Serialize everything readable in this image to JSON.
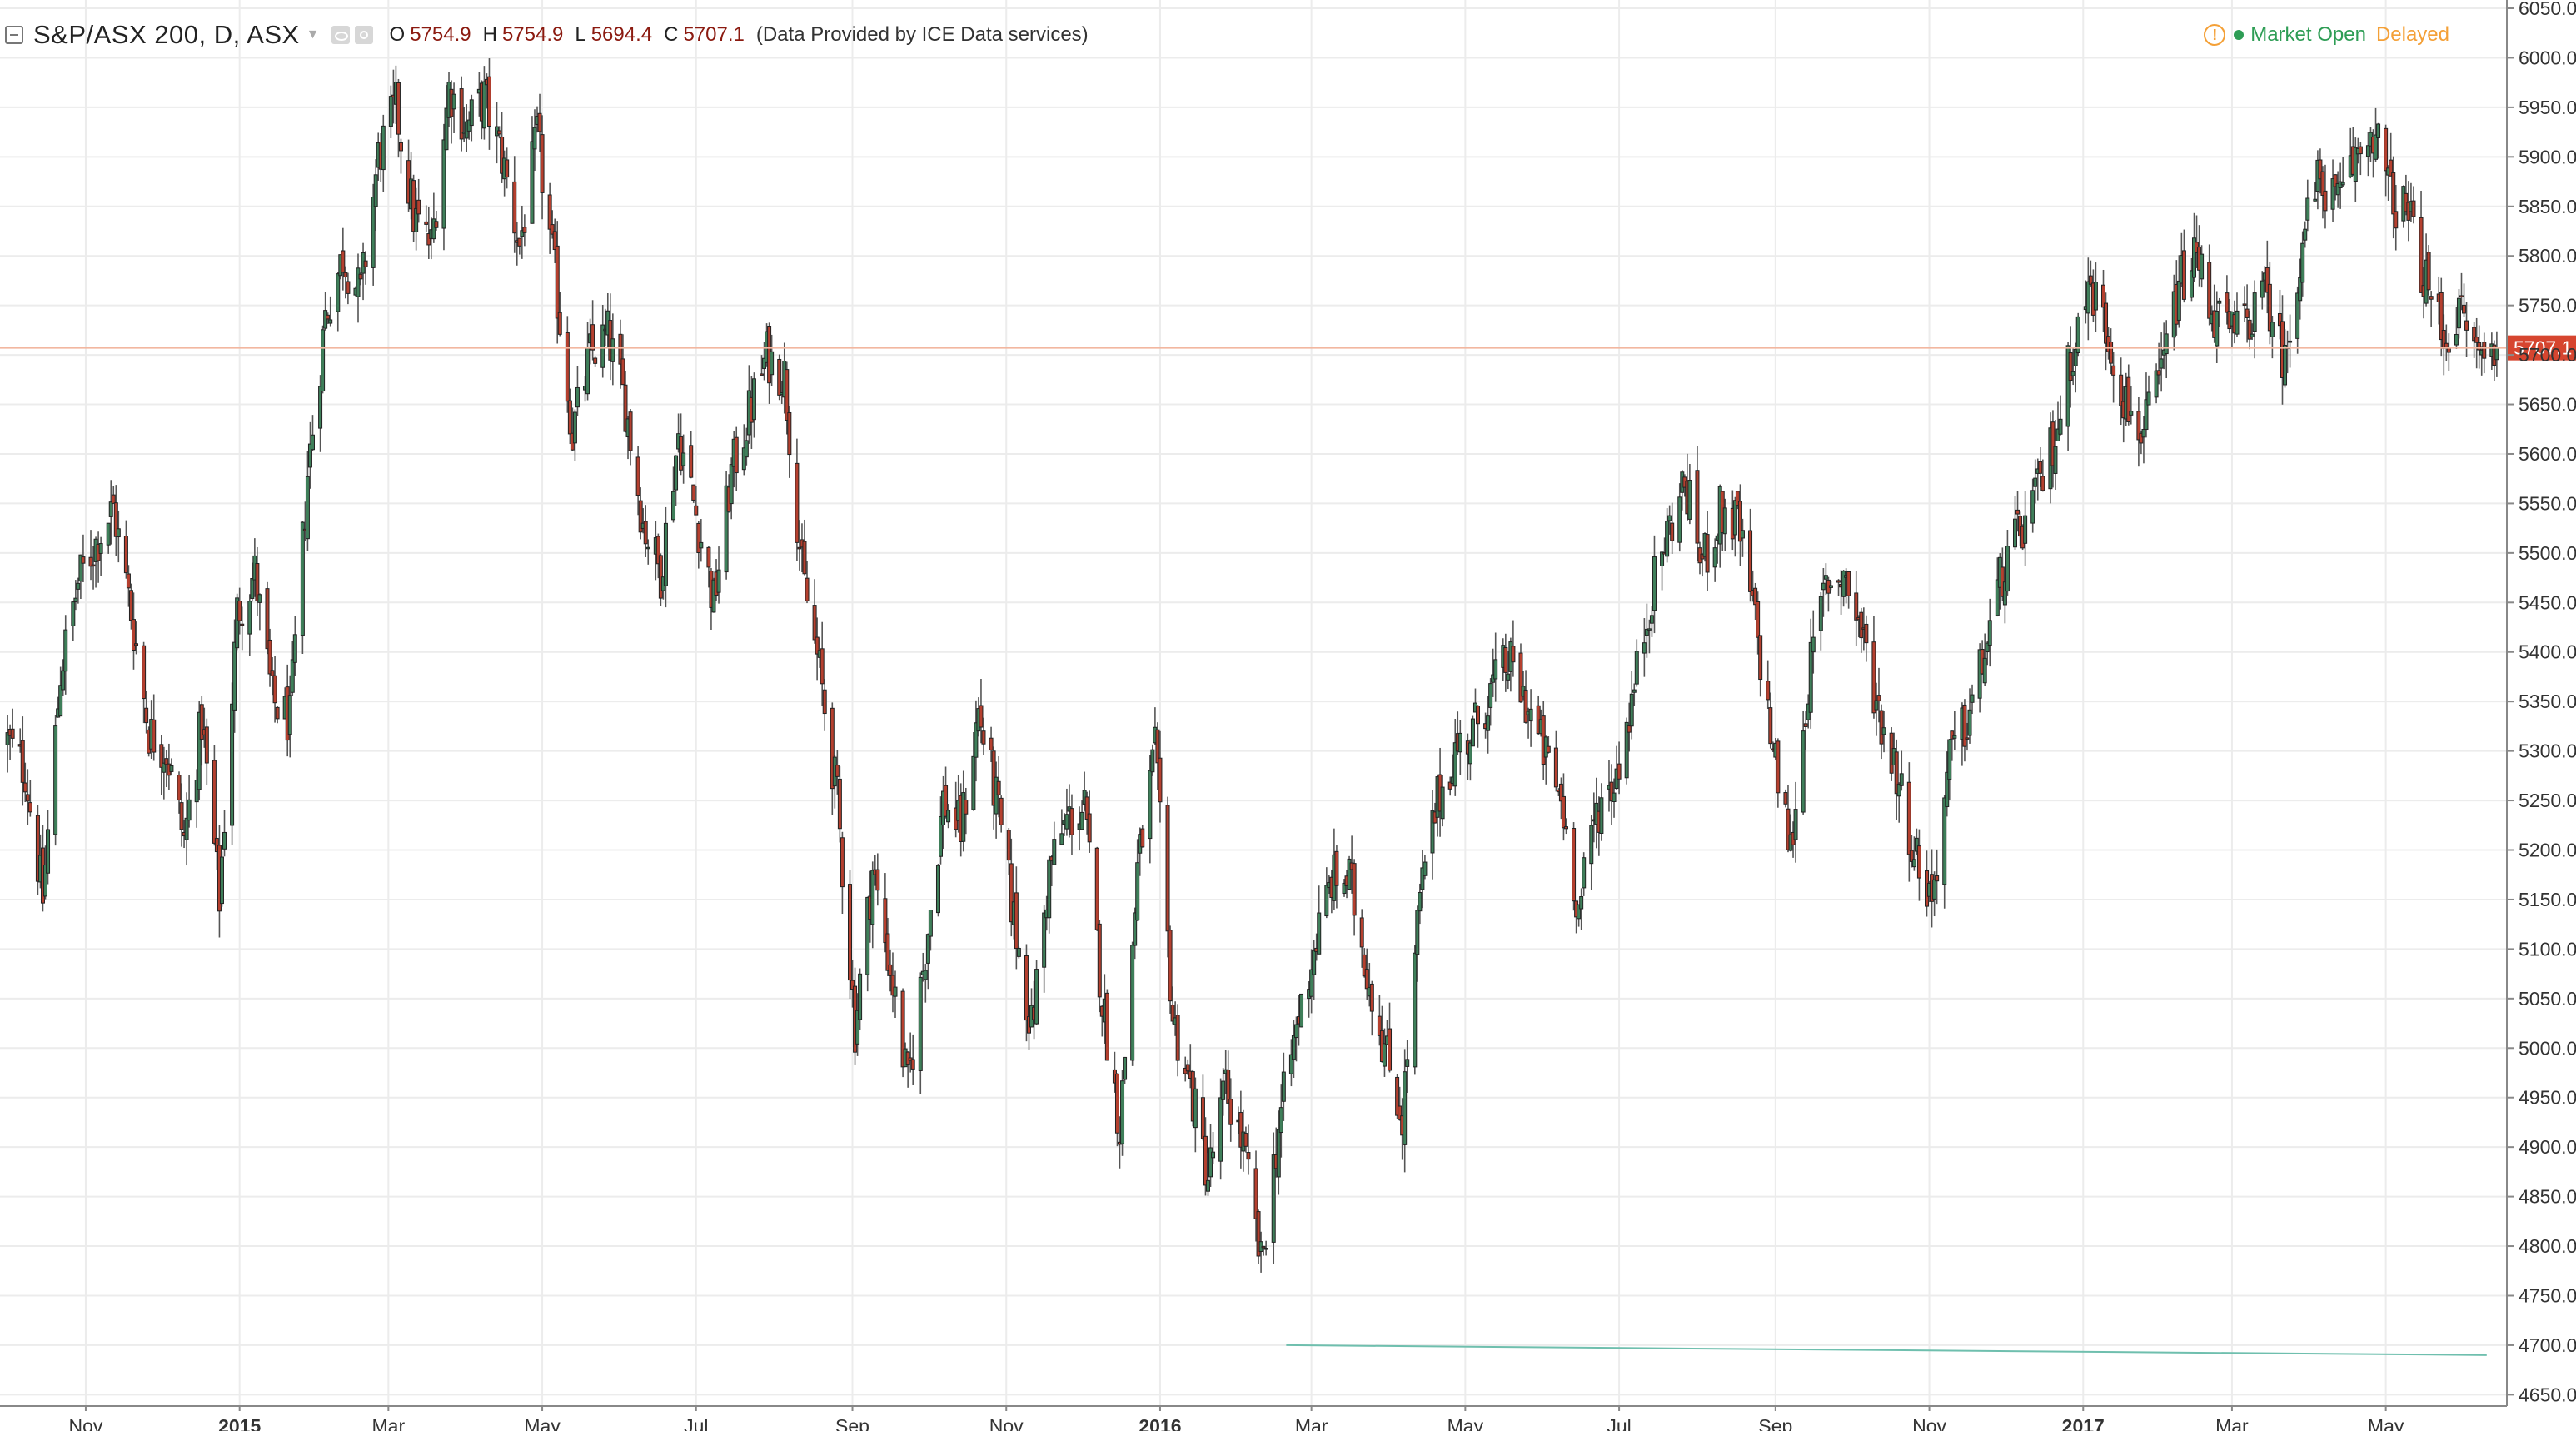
{
  "header": {
    "symbol": "S&P/ASX 200, D, ASX",
    "open_label": "O",
    "open": "5754.9",
    "high_label": "H",
    "high": "5754.9",
    "low_label": "L",
    "low": "5694.4",
    "close_label": "C",
    "close": "5707.1",
    "provider": "(Data Provided by ICE Data services)"
  },
  "status": {
    "warning_icon": "warning-icon",
    "market": "Market Open",
    "delay": "Delayed"
  },
  "colors": {
    "up_body": "#3f7f5a",
    "down_body": "#b5402f",
    "outline": "#222222",
    "wick": "#555555",
    "grid": "#ececec",
    "price_line": "#f2b7a0",
    "price_label": "#d6452f",
    "trendline": "#6fbfae",
    "warning": "#f4a037",
    "market_open": "#2e9d55"
  },
  "chart_data": {
    "type": "candlestick",
    "title": "S&P/ASX 200, D, ASX",
    "ylim": [
      4650,
      6050
    ],
    "y_ticks": [
      "4650.0",
      "4700.0",
      "4750.0",
      "4800.0",
      "4850.0",
      "4900.0",
      "4950.0",
      "5000.0",
      "5050.0",
      "5100.0",
      "5150.0",
      "5200.0",
      "5250.0",
      "5300.0",
      "5350.0",
      "5400.0",
      "5450.0",
      "5500.0",
      "5550.0",
      "5600.0",
      "5650.0",
      "5700.0",
      "5750.0",
      "5800.0",
      "5850.0",
      "5900.0",
      "5950.0",
      "6000.0",
      "6050.0"
    ],
    "x_ticks": [
      {
        "date": "2014-11-01",
        "label": "Nov",
        "bold": false
      },
      {
        "date": "2015-01-01",
        "label": "2015",
        "bold": true
      },
      {
        "date": "2015-03-01",
        "label": "Mar",
        "bold": false
      },
      {
        "date": "2015-05-01",
        "label": "May",
        "bold": false
      },
      {
        "date": "2015-07-01",
        "label": "Jul",
        "bold": false
      },
      {
        "date": "2015-09-01",
        "label": "Sep",
        "bold": false
      },
      {
        "date": "2015-11-01",
        "label": "Nov",
        "bold": false
      },
      {
        "date": "2016-01-01",
        "label": "2016",
        "bold": true
      },
      {
        "date": "2016-03-01",
        "label": "Mar",
        "bold": false
      },
      {
        "date": "2016-05-01",
        "label": "May",
        "bold": false
      },
      {
        "date": "2016-07-01",
        "label": "Jul",
        "bold": false
      },
      {
        "date": "2016-09-01",
        "label": "Sep",
        "bold": false
      },
      {
        "date": "2016-11-01",
        "label": "Nov",
        "bold": false
      },
      {
        "date": "2017-01-01",
        "label": "2017",
        "bold": true
      },
      {
        "date": "2017-03-01",
        "label": "Mar",
        "bold": false
      },
      {
        "date": "2017-05-01",
        "label": "May",
        "bold": false
      }
    ],
    "x_range": [
      "2014-09-28",
      "2017-06-18"
    ],
    "last_price": 5707.1,
    "last_price_label": "5707.1",
    "close_path": [
      [
        "2014-10-01",
        5310
      ],
      [
        "2014-10-08",
        5280
      ],
      [
        "2014-10-15",
        5150
      ],
      [
        "2014-10-22",
        5380
      ],
      [
        "2014-10-29",
        5470
      ],
      [
        "2014-11-05",
        5510
      ],
      [
        "2014-11-12",
        5545
      ],
      [
        "2014-11-19",
        5440
      ],
      [
        "2014-11-26",
        5320
      ],
      [
        "2014-12-03",
        5300
      ],
      [
        "2014-12-10",
        5210
      ],
      [
        "2014-12-17",
        5330
      ],
      [
        "2014-12-24",
        5150
      ],
      [
        "2014-12-31",
        5440
      ],
      [
        "2015-01-07",
        5480
      ],
      [
        "2015-01-14",
        5350
      ],
      [
        "2015-01-21",
        5330
      ],
      [
        "2015-01-28",
        5580
      ],
      [
        "2015-02-04",
        5740
      ],
      [
        "2015-02-11",
        5800
      ],
      [
        "2015-02-18",
        5760
      ],
      [
        "2015-02-25",
        5900
      ],
      [
        "2015-03-04",
        5950
      ],
      [
        "2015-03-11",
        5840
      ],
      [
        "2015-03-18",
        5810
      ],
      [
        "2015-03-25",
        5970
      ],
      [
        "2015-04-01",
        5930
      ],
      [
        "2015-04-08",
        5960
      ],
      [
        "2015-04-15",
        5900
      ],
      [
        "2015-04-22",
        5810
      ],
      [
        "2015-04-29",
        5920
      ],
      [
        "2015-05-06",
        5780
      ],
      [
        "2015-05-13",
        5620
      ],
      [
        "2015-05-20",
        5700
      ],
      [
        "2015-05-27",
        5720
      ],
      [
        "2015-06-03",
        5650
      ],
      [
        "2015-06-10",
        5530
      ],
      [
        "2015-06-17",
        5480
      ],
      [
        "2015-06-24",
        5620
      ],
      [
        "2015-07-01",
        5540
      ],
      [
        "2015-07-08",
        5450
      ],
      [
        "2015-07-15",
        5580
      ],
      [
        "2015-07-22",
        5640
      ],
      [
        "2015-07-29",
        5700
      ],
      [
        "2015-08-05",
        5680
      ],
      [
        "2015-08-12",
        5480
      ],
      [
        "2015-08-19",
        5380
      ],
      [
        "2015-08-26",
        5250
      ],
      [
        "2015-09-02",
        5020
      ],
      [
        "2015-09-09",
        5180
      ],
      [
        "2015-09-16",
        5080
      ],
      [
        "2015-09-23",
        4960
      ],
      [
        "2015-09-30",
        5100
      ],
      [
        "2015-10-07",
        5250
      ],
      [
        "2015-10-14",
        5220
      ],
      [
        "2015-10-21",
        5340
      ],
      [
        "2015-10-28",
        5250
      ],
      [
        "2015-11-04",
        5130
      ],
      [
        "2015-11-11",
        5020
      ],
      [
        "2015-11-18",
        5180
      ],
      [
        "2015-11-25",
        5230
      ],
      [
        "2015-12-02",
        5240
      ],
      [
        "2015-12-09",
        5050
      ],
      [
        "2015-12-16",
        4920
      ],
      [
        "2015-12-23",
        5180
      ],
      [
        "2015-12-30",
        5300
      ],
      [
        "2016-01-06",
        5030
      ],
      [
        "2016-01-13",
        4960
      ],
      [
        "2016-01-20",
        4870
      ],
      [
        "2016-01-27",
        4960
      ],
      [
        "2016-02-03",
        4900
      ],
      [
        "2016-02-10",
        4780
      ],
      [
        "2016-02-17",
        4920
      ],
      [
        "2016-02-24",
        5020
      ],
      [
        "2016-03-02",
        5100
      ],
      [
        "2016-03-09",
        5170
      ],
      [
        "2016-03-16",
        5170
      ],
      [
        "2016-03-23",
        5080
      ],
      [
        "2016-03-30",
        5000
      ],
      [
        "2016-04-06",
        4930
      ],
      [
        "2016-04-13",
        5150
      ],
      [
        "2016-04-20",
        5250
      ],
      [
        "2016-04-27",
        5300
      ],
      [
        "2016-05-04",
        5320
      ],
      [
        "2016-05-11",
        5360
      ],
      [
        "2016-05-18",
        5390
      ],
      [
        "2016-05-25",
        5350
      ],
      [
        "2016-06-01",
        5300
      ],
      [
        "2016-06-08",
        5250
      ],
      [
        "2016-06-15",
        5140
      ],
      [
        "2016-06-22",
        5240
      ],
      [
        "2016-06-29",
        5270
      ],
      [
        "2016-07-06",
        5350
      ],
      [
        "2016-07-13",
        5450
      ],
      [
        "2016-07-20",
        5520
      ],
      [
        "2016-07-27",
        5570
      ],
      [
        "2016-08-03",
        5490
      ],
      [
        "2016-08-10",
        5540
      ],
      [
        "2016-08-17",
        5530
      ],
      [
        "2016-08-24",
        5430
      ],
      [
        "2016-08-31",
        5300
      ],
      [
        "2016-09-07",
        5200
      ],
      [
        "2016-09-14",
        5370
      ],
      [
        "2016-09-21",
        5470
      ],
      [
        "2016-09-28",
        5480
      ],
      [
        "2016-10-05",
        5420
      ],
      [
        "2016-10-12",
        5340
      ],
      [
        "2016-10-19",
        5280
      ],
      [
        "2016-10-26",
        5200
      ],
      [
        "2016-11-02",
        5150
      ],
      [
        "2016-11-09",
        5290
      ],
      [
        "2016-11-16",
        5330
      ],
      [
        "2016-11-23",
        5400
      ],
      [
        "2016-11-30",
        5480
      ],
      [
        "2016-12-07",
        5520
      ],
      [
        "2016-12-14",
        5560
      ],
      [
        "2016-12-21",
        5620
      ],
      [
        "2016-12-28",
        5710
      ],
      [
        "2017-01-04",
        5770
      ],
      [
        "2017-01-11",
        5720
      ],
      [
        "2017-01-18",
        5650
      ],
      [
        "2017-01-25",
        5620
      ],
      [
        "2017-02-01",
        5680
      ],
      [
        "2017-02-08",
        5770
      ],
      [
        "2017-02-15",
        5800
      ],
      [
        "2017-02-22",
        5740
      ],
      [
        "2017-03-01",
        5720
      ],
      [
        "2017-03-08",
        5740
      ],
      [
        "2017-03-15",
        5760
      ],
      [
        "2017-03-22",
        5690
      ],
      [
        "2017-03-29",
        5820
      ],
      [
        "2017-04-05",
        5880
      ],
      [
        "2017-04-12",
        5850
      ],
      [
        "2017-04-19",
        5900
      ],
      [
        "2017-04-26",
        5930
      ],
      [
        "2017-05-03",
        5860
      ],
      [
        "2017-05-10",
        5840
      ],
      [
        "2017-05-17",
        5770
      ],
      [
        "2017-05-24",
        5720
      ],
      [
        "2017-05-31",
        5740
      ],
      [
        "2017-06-07",
        5700
      ],
      [
        "2017-06-14",
        5707.1
      ]
    ],
    "trendline": [
      [
        "2016-02-20",
        4700
      ],
      [
        "2017-06-10",
        4690
      ]
    ]
  }
}
